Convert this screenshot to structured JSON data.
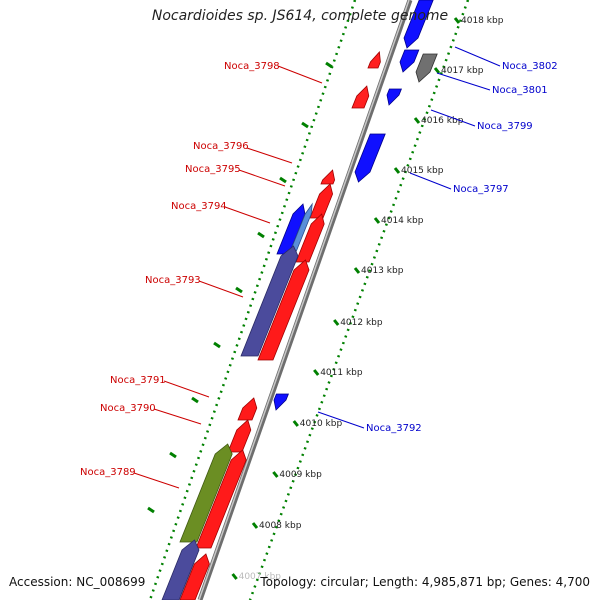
{
  "header": {
    "title": "Nocardioides sp. JS614, complete genome"
  },
  "footer": {
    "accession": "Accession: NC_008699",
    "summary": "Topology: circular; Length: 4,985,871 bp; Genes: 4,700"
  },
  "colors": {
    "forward_gene": "#ff0000",
    "reverse_gene": "#0000ff",
    "label_forward": "#cc0000",
    "label_reverse": "#0000cc",
    "backbone": "#8c8c8c",
    "ruler_dots": "#008000"
  },
  "ruler": {
    "ticks": [
      "4018 kbp",
      "4017 kbp",
      "4016 kbp",
      "4015 kbp",
      "4014 kbp",
      "4013 kbp",
      "4012 kbp",
      "4011 kbp",
      "4010 kbp",
      "4009 kbp",
      "4008 kbp",
      "4007 kbp"
    ]
  },
  "gene_labels": {
    "forward": [
      "Noca_3798",
      "Noca_3796",
      "Noca_3795",
      "Noca_3794",
      "Noca_3793",
      "Noca_3791",
      "Noca_3790",
      "Noca_3789"
    ],
    "reverse": [
      "Noca_3802",
      "Noca_3801",
      "Noca_3799",
      "Noca_3797",
      "Noca_3792"
    ]
  }
}
